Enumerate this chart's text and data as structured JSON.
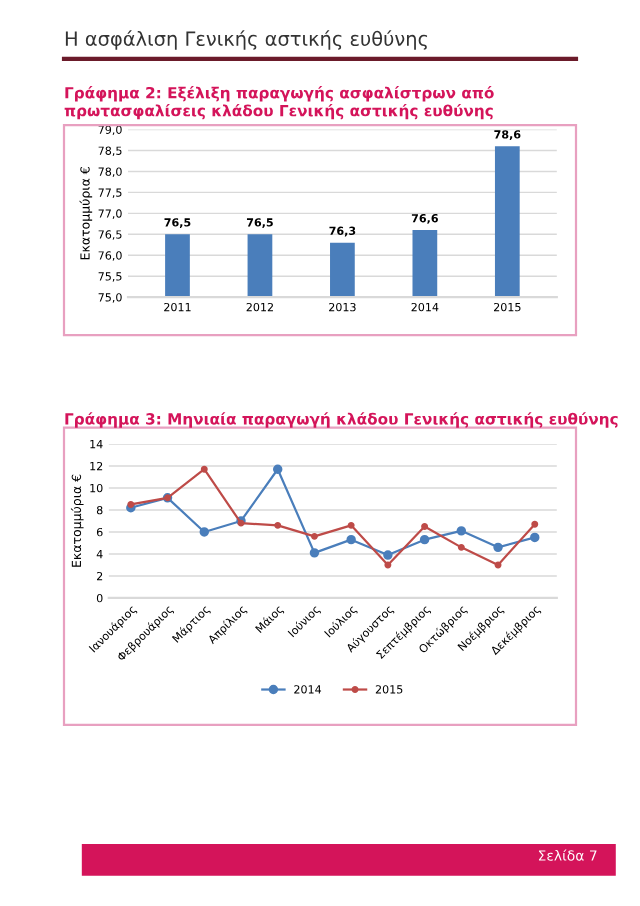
{
  "chart_data": [
    {
      "type": "bar",
      "title": "Γράφημα 2: Εξέλιξη παραγωγής ασφαλίστρων από πρωτασφαλίσεις κλάδου Γενικής αστικής ευθύνης",
      "ylabel": "Εκατομμύρια €",
      "annotations": [
        "Η ασφάλιση Γενικής αστικής ευθύνης"
      ],
      "categories": [
        "2011",
        "2012",
        "2013",
        "2014",
        "2015"
      ],
      "series": [
        {
          "color": "#4a7ebb",
          "values": [
            76.5,
            76.5,
            76.3,
            76.6,
            78.6
          ],
          "value_labels": [
            "76,5",
            "76,5",
            "76,3",
            "76,6",
            "78,6"
          ]
        }
      ],
      "ylim": [
        75,
        79
      ],
      "yticks": [
        {
          "value": 75,
          "label": "75,0"
        },
        {
          "value": 75.5,
          "label": "75,5"
        },
        {
          "value": 76,
          "label": "76,0"
        },
        {
          "value": 76.5,
          "label": "76,5"
        },
        {
          "value": 77,
          "label": "77,0"
        },
        {
          "value": 77.5,
          "label": "77,5"
        },
        {
          "value": 78,
          "label": "78,0"
        },
        {
          "value": 78.5,
          "label": "78,5"
        },
        {
          "value": 79,
          "label": "79,0"
        }
      ],
      "grid": "y"
    },
    {
      "type": "line",
      "title": "Γράφημα 3: Μηνιαία παραγωγή κλάδου Γενικής αστικής ευθύνης",
      "ylabel": "Εκατομμύρια €",
      "annotations": [
        "Σελίδα 7"
      ],
      "categories": [
        "Ιανουάριος",
        "Φεβρουάριος",
        "Μάρτιος",
        "Απρίλιος",
        "Μάιος",
        "Ιούνιος",
        "Ιούλιος",
        "Αύγουστος",
        "Σεπτέμβριος",
        "Οκτώβριος",
        "Νοέμβριος",
        "Δεκέμβριος"
      ],
      "series": [
        {
          "name": "2014",
          "color": "#4a7ebb",
          "values": [
            8.2,
            9.1,
            6.0,
            7.0,
            11.7,
            4.1,
            5.3,
            3.9,
            5.3,
            6.1,
            4.6,
            5.5
          ]
        },
        {
          "name": "2015",
          "color": "#be4b48",
          "values": [
            8.5,
            9.1,
            11.7,
            6.8,
            6.6,
            5.6,
            6.6,
            3.0,
            6.5,
            4.6,
            3.0,
            6.7
          ]
        }
      ],
      "ylim": [
        0,
        14
      ],
      "yticks": [
        0,
        2,
        4,
        6,
        8,
        10,
        12,
        14
      ],
      "grid": "y",
      "legend": "bottom",
      "marker": "circle",
      "line_style": "solid"
    }
  ]
}
